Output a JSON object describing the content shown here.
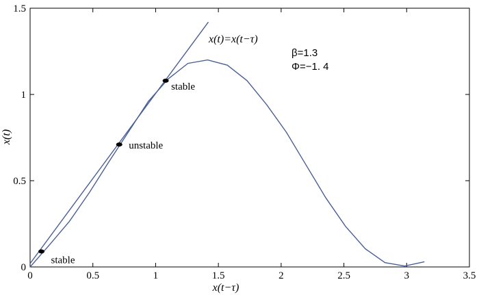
{
  "chart_data": {
    "type": "line",
    "title": "",
    "xlabel": "x(t−τ)",
    "ylabel": "x(t)",
    "xlim": [
      0,
      3.5
    ],
    "ylim": [
      0,
      1.5
    ],
    "xticks": [
      0,
      0.5,
      1,
      1.5,
      2,
      2.5,
      3,
      3.5
    ],
    "xtick_labels": [
      "0",
      "0.5",
      "1",
      "1.5",
      "2",
      "2.5",
      "3",
      "3.5"
    ],
    "yticks": [
      0,
      0.5,
      1,
      1.5
    ],
    "ytick_labels": [
      "0",
      "0.5",
      "1",
      "1.5"
    ],
    "grid": false,
    "series": [
      {
        "name": "",
        "color": "#4a5f96",
        "x": [
          0,
          0.157,
          0.314,
          0.471,
          0.628,
          0.785,
          0.942,
          1.1,
          1.257,
          1.414,
          1.571,
          1.728,
          1.885,
          2.042,
          2.199,
          2.356,
          2.513,
          2.67,
          2.827,
          2.985,
          3.142
        ],
        "y": [
          0,
          0.13,
          0.265,
          0.43,
          0.61,
          0.785,
          0.96,
          1.09,
          1.18,
          1.2,
          1.17,
          1.08,
          0.94,
          0.78,
          0.59,
          0.4,
          0.235,
          0.105,
          0.025,
          0.005,
          0.03
        ]
      },
      {
        "name": "x(t)=x(t−τ)",
        "color": "#4a5f96",
        "x": [
          0,
          1.42
        ],
        "y": [
          0.02,
          1.42
        ]
      }
    ],
    "points": [
      {
        "x": 0.09,
        "y": 0.09,
        "label": "stable"
      },
      {
        "x": 0.71,
        "y": 0.71,
        "label": "unstable"
      },
      {
        "x": 1.08,
        "y": 1.08,
        "label": "stable"
      }
    ],
    "annotations": {
      "line_label": "x(t)=x(t−τ)",
      "beta": "β=1.3",
      "phi": "Φ=−1. 4"
    }
  }
}
